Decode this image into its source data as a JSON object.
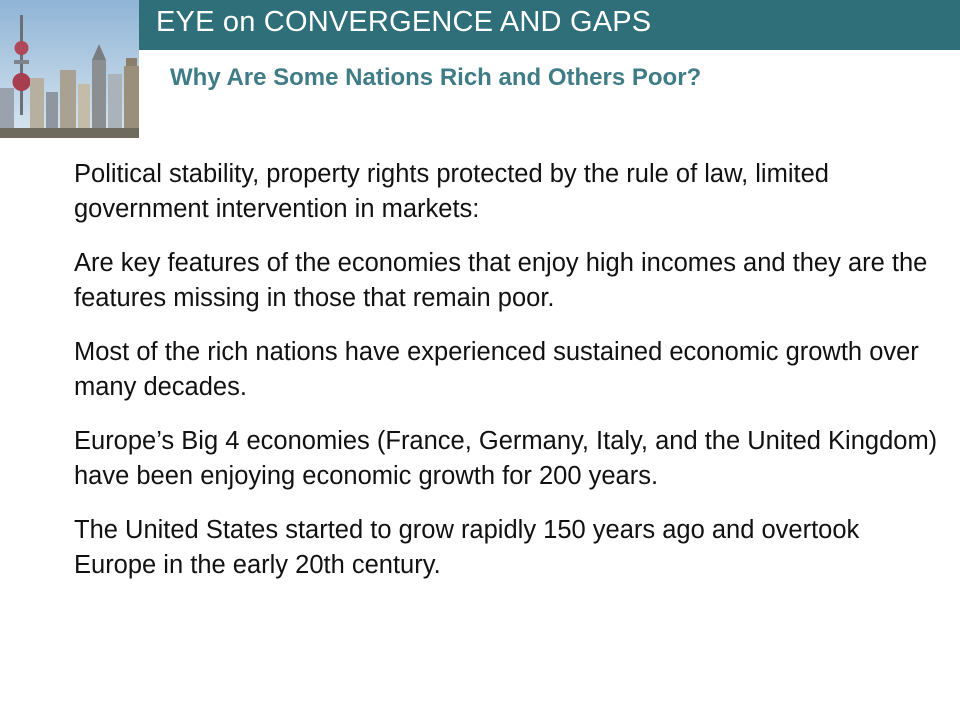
{
  "header": {
    "title": "EYE on CONVERGENCE AND GAPS",
    "subtitle": "Why Are Some Nations Rich and Others Poor?",
    "accent_color": "#2e6f7a",
    "subtitle_color": "#3f7c86"
  },
  "image": {
    "icon": "city-skyline-photo"
  },
  "paragraphs": [
    "Political stability, property rights protected by the rule of law, limited government intervention in markets:",
    "Are key features of the economies that enjoy high incomes and they are the features missing in those that remain poor.",
    "Most of the rich nations have experienced sustained economic growth over many decades.",
    "Europe’s Big 4 economies (France, Germany, Italy, and the United Kingdom) have been enjoying economic growth for 200 years.",
    "The United States started to grow rapidly 150 years ago and overtook Europe in the early 20th century."
  ]
}
